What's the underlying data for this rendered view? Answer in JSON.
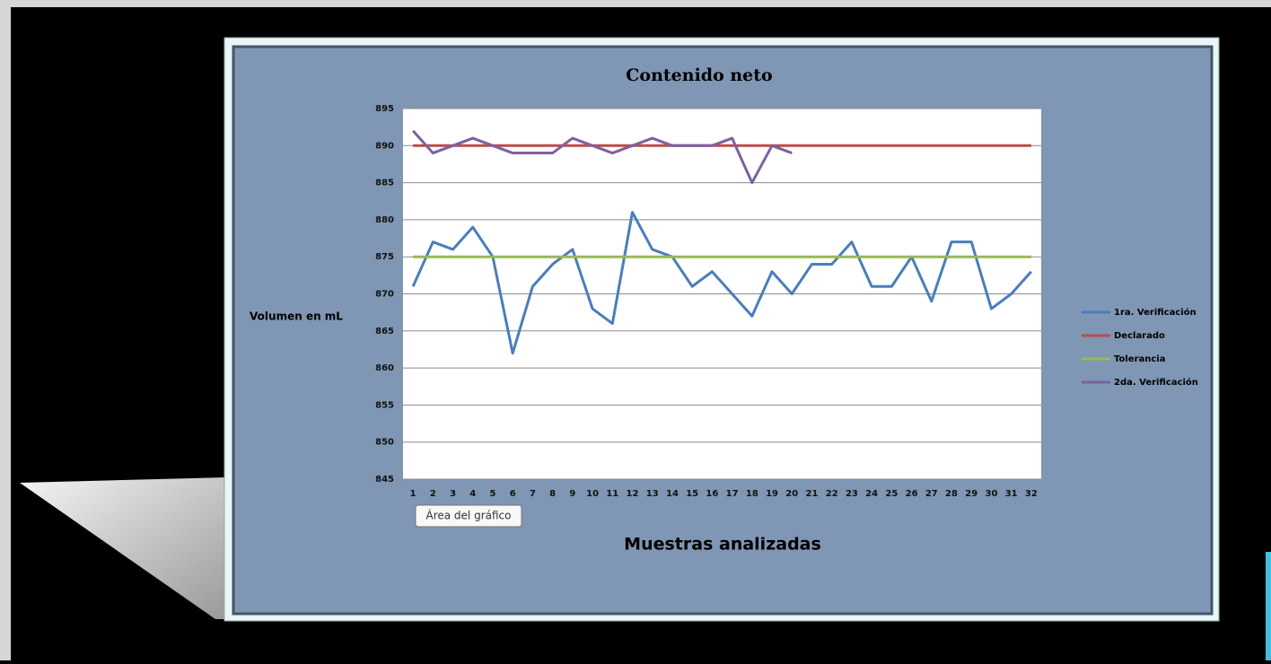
{
  "chart_data": {
    "type": "line",
    "title": "Contenido neto",
    "x_label": "Muestras analizadas",
    "y_label": "Volumen en mL",
    "categories": [
      1,
      2,
      3,
      4,
      5,
      6,
      7,
      8,
      9,
      10,
      11,
      12,
      13,
      14,
      15,
      16,
      17,
      18,
      19,
      20,
      21,
      22,
      23,
      24,
      25,
      26,
      27,
      28,
      29,
      30,
      31,
      32
    ],
    "series": [
      {
        "name": "1ra. Verificación",
        "color": "#4a7ebb",
        "values": [
          871,
          877,
          876,
          879,
          875,
          862,
          871,
          874,
          876,
          868,
          866,
          881,
          876,
          875,
          871,
          873,
          870,
          867,
          873,
          870,
          874,
          874,
          877,
          871,
          871,
          875,
          869,
          877,
          877,
          868,
          870,
          873
        ]
      },
      {
        "name": "Declarado",
        "color": "#be4b48",
        "values": [
          890,
          890,
          890,
          890,
          890,
          890,
          890,
          890,
          890,
          890,
          890,
          890,
          890,
          890,
          890,
          890,
          890,
          890,
          890,
          890,
          890,
          890,
          890,
          890,
          890,
          890,
          890,
          890,
          890,
          890,
          890,
          890
        ]
      },
      {
        "name": "Tolerancia",
        "color": "#98b954",
        "values": [
          875,
          875,
          875,
          875,
          875,
          875,
          875,
          875,
          875,
          875,
          875,
          875,
          875,
          875,
          875,
          875,
          875,
          875,
          875,
          875,
          875,
          875,
          875,
          875,
          875,
          875,
          875,
          875,
          875,
          875,
          875,
          875
        ]
      },
      {
        "name": "2da. Verificación",
        "color": "#7d60a0",
        "values": [
          892,
          889,
          890,
          891,
          890,
          889,
          889,
          889,
          891,
          890,
          889,
          890,
          891,
          890,
          890,
          890,
          891,
          885,
          890,
          889,
          null,
          null,
          null,
          null,
          null,
          null,
          null,
          null,
          null,
          null,
          null,
          null
        ]
      }
    ],
    "ylim": [
      845,
      895
    ],
    "yticks": [
      845,
      850,
      855,
      860,
      865,
      870,
      875,
      880,
      885,
      890,
      895
    ],
    "grid": true,
    "legend": "right"
  },
  "tooltip": "Área del gráfico"
}
